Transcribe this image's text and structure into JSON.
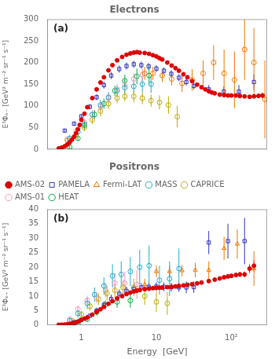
{
  "chart_data": [
    {
      "type": "scatter",
      "title": "Electrons",
      "annotations": [
        "(a)"
      ],
      "ylabel": "E³Φₑ₋ [GeV² m⁻² sr⁻¹ s⁻¹]",
      "log": "x",
      "grid": false,
      "tick_labels": "y",
      "xlim": [
        0.35,
        300
      ],
      "xticks": [
        1,
        10,
        {
          "value": 100,
          "label": "10²"
        }
      ],
      "ylim": [
        0,
        300
      ],
      "yticks": [
        0,
        50,
        100,
        150,
        200,
        250,
        300
      ],
      "series": [
        {
          "color": "#dd0000",
          "marker": "circle",
          "x": [
            0.5,
            0.55,
            0.6,
            0.65,
            0.7,
            0.75,
            0.8,
            0.85,
            0.9,
            0.95,
            1.0,
            1.1,
            1.2,
            1.4,
            1.6,
            1.8,
            2.0,
            2.3,
            2.6,
            3.0,
            3.5,
            4.0,
            4.5,
            5.0,
            5.5,
            6.0,
            7.0,
            8.0,
            9.0,
            10.0,
            11.0,
            12.0,
            14.0,
            16.0,
            18.0,
            20.0,
            23.0,
            26.0,
            30.0,
            35.0,
            40.0,
            45.0,
            50.0,
            55.0,
            60.0,
            70.0,
            80.0,
            90.0,
            100.0,
            115.0,
            130.0,
            150.0,
            175.0,
            200.0,
            230.0,
            260.0
          ],
          "values": [
            2,
            4,
            7,
            11,
            16,
            22,
            29,
            37,
            46,
            56,
            68,
            82,
            97,
            118,
            138,
            154,
            166,
            182,
            194,
            205,
            213,
            218,
            221,
            223,
            224,
            223,
            222,
            220,
            217,
            214,
            210,
            207,
            200,
            193,
            187,
            181,
            173,
            166,
            157,
            149,
            143,
            138,
            134,
            131,
            129,
            126,
            125,
            124,
            124,
            124,
            123,
            122,
            121,
            122,
            123,
            124
          ],
          "errors": [
            0.5,
            0.8,
            1,
            1.2,
            1.5,
            2,
            2,
            2.5,
            3,
            3,
            3,
            3,
            3,
            3,
            3,
            3,
            3,
            3,
            3,
            3,
            3,
            3,
            3,
            3,
            3,
            3,
            3,
            3,
            3,
            3,
            3,
            3,
            3,
            3,
            3,
            3,
            3,
            3,
            3,
            3,
            3,
            3,
            3,
            3,
            3,
            3,
            3,
            3,
            3,
            3,
            3,
            3,
            4,
            4,
            5,
            6
          ]
        },
        {
          "color": "#3333bb",
          "marker": "open_square",
          "x": [
            0.6,
            0.8,
            1.0,
            1.3,
            1.6,
            2.0,
            2.5,
            3.2,
            4.0,
            5.0,
            6.3,
            7.9,
            10.0,
            12.6,
            15.8,
            20.0,
            25.1,
            31.6,
            50.0,
            79.4,
            126.0,
            200.0
          ],
          "values": [
            43,
            59,
            76,
            98,
            120,
            148,
            170,
            185,
            192,
            196,
            194,
            191,
            186,
            181,
            174,
            165,
            155,
            146,
            138,
            133,
            133,
            155
          ],
          "errors": [
            4,
            5,
            5,
            6,
            7,
            8,
            8,
            8,
            8,
            8,
            8,
            8,
            8,
            8,
            8,
            8,
            8,
            8,
            10,
            12,
            15,
            18
          ]
        },
        {
          "color": "#ee7700",
          "marker": "open_circle",
          "x": [
            7.0,
            9.0,
            12.0,
            16.0,
            22.0,
            30.0,
            42.0,
            58.0,
            80.0,
            110.0,
            150.0,
            200.0,
            280.0
          ],
          "values": [
            175,
            175,
            170,
            162,
            152,
            160,
            175,
            200,
            175,
            160,
            230,
            200,
            115
          ],
          "errors": [
            15,
            15,
            15,
            15,
            20,
            25,
            30,
            40,
            55,
            65,
            70,
            80,
            90
          ]
        },
        {
          "color": "#22aacc",
          "marker": "open_circle",
          "x": [
            0.7,
            0.9,
            1.1,
            1.4,
            1.8,
            2.3,
            3.0,
            3.8,
            5.0,
            6.5,
            8.5
          ],
          "values": [
            25,
            40,
            58,
            80,
            102,
            120,
            135,
            142,
            145,
            150,
            150
          ],
          "errors": [
            8,
            8,
            8,
            10,
            12,
            12,
            12,
            14,
            15,
            18,
            20
          ]
        },
        {
          "color": "#bbaa00",
          "marker": "open_circle",
          "x": [
            0.65,
            0.85,
            1.1,
            1.4,
            1.8,
            2.3,
            3.0,
            3.8,
            5.0,
            6.5,
            8.5,
            11.0,
            14.5,
            19.0
          ],
          "values": [
            20,
            32,
            50,
            68,
            88,
            105,
            118,
            122,
            122,
            118,
            112,
            108,
            102,
            75
          ],
          "errors": [
            7,
            7,
            8,
            10,
            12,
            12,
            12,
            12,
            14,
            14,
            14,
            16,
            20,
            25
          ]
        },
        {
          "color": "#ee99bb",
          "marker": "open_circle",
          "x": [
            0.65,
            0.85,
            1.1,
            1.4,
            1.8,
            2.3,
            3.0,
            3.8,
            5.0,
            6.5
          ],
          "values": [
            23,
            42,
            62,
            80,
            98,
            118,
            138,
            148,
            162,
            172
          ],
          "errors": [
            7,
            7,
            8,
            10,
            10,
            12,
            12,
            12,
            14,
            14
          ]
        },
        {
          "color": "#00aa44",
          "marker": "open_circle",
          "x": [
            0.7,
            0.9,
            1.1,
            1.5,
            2.0,
            2.8,
            3.8,
            5.5,
            8.0
          ],
          "values": [
            5,
            25,
            55,
            80,
            105,
            135,
            158,
            168,
            170
          ],
          "errors": [
            4,
            6,
            8,
            10,
            12,
            12,
            14,
            18,
            22
          ]
        }
      ]
    },
    {
      "type": "scatter",
      "title": "Positrons",
      "annotations": [
        "(b)"
      ],
      "xlabel": "Energy  [GeV]",
      "ylabel": "E³Φₑ₊ [GeV² m⁻² sr⁻¹ s⁻¹]",
      "log": "x",
      "grid": false,
      "legend": "upper left",
      "xlim": [
        0.35,
        300
      ],
      "xticks": [
        1,
        10,
        {
          "value": 100,
          "label": "10²"
        }
      ],
      "ylim": [
        0,
        40
      ],
      "yticks": [
        0,
        5,
        10,
        15,
        20,
        25,
        30,
        35,
        40
      ],
      "series": [
        {
          "name": "AMS-02",
          "color": "#dd0000",
          "marker": "circle",
          "x": [
            0.5,
            0.55,
            0.6,
            0.65,
            0.7,
            0.75,
            0.8,
            0.85,
            0.9,
            0.95,
            1.0,
            1.1,
            1.2,
            1.4,
            1.6,
            1.8,
            2.0,
            2.3,
            2.6,
            3.0,
            3.5,
            4.0,
            4.5,
            5.0,
            5.5,
            6.0,
            7.0,
            8.0,
            9.0,
            10.0,
            11.0,
            12.0,
            14.0,
            16.0,
            18.0,
            20.0,
            23.0,
            26.0,
            30.0,
            35.0,
            40.0,
            50.0,
            60.0,
            70.0,
            80.0,
            90.0,
            100.0,
            115.0,
            130.0,
            150.0,
            175.0,
            200.0
          ],
          "values": [
            0.08,
            0.12,
            0.18,
            0.26,
            0.37,
            0.52,
            0.7,
            0.92,
            1.18,
            1.48,
            1.82,
            2.22,
            2.66,
            3.6,
            4.55,
            5.45,
            6.3,
            7.35,
            8.25,
            9.2,
            10.0,
            10.7,
            11.2,
            11.6,
            11.9,
            12.1,
            12.4,
            12.6,
            12.75,
            12.85,
            12.9,
            12.95,
            13.1,
            13.2,
            13.35,
            13.5,
            13.7,
            13.9,
            14.1,
            14.4,
            14.7,
            15.2,
            15.7,
            16.1,
            16.5,
            16.8,
            17.0,
            17.3,
            17.5,
            17.5,
            19.5,
            20.5
          ],
          "errors": [
            0.03,
            0.04,
            0.05,
            0.07,
            0.08,
            0.1,
            0.1,
            0.12,
            0.15,
            0.18,
            0.2,
            0.2,
            0.2,
            0.25,
            0.3,
            0.3,
            0.3,
            0.3,
            0.3,
            0.3,
            0.3,
            0.3,
            0.3,
            0.3,
            0.3,
            0.3,
            0.3,
            0.3,
            0.3,
            0.3,
            0.3,
            0.3,
            0.3,
            0.3,
            0.3,
            0.3,
            0.3,
            0.3,
            0.3,
            0.35,
            0.4,
            0.4,
            0.5,
            0.5,
            0.6,
            0.6,
            0.7,
            0.8,
            0.9,
            1.0,
            1.5,
            2.0
          ]
        },
        {
          "name": "PAMELA",
          "color": "#3333bb",
          "marker": "open_square",
          "x": [
            0.8,
            1.0,
            1.3,
            1.6,
            2.0,
            2.5,
            3.2,
            4.0,
            5.0,
            6.3,
            7.9,
            10.0,
            12.6,
            15.8,
            20.0,
            25.1,
            31.6,
            50.0,
            90.0,
            150.0
          ],
          "values": [
            1.0,
            1.8,
            3.2,
            5.0,
            7.0,
            9.0,
            10.8,
            11.8,
            12.5,
            13.0,
            13.2,
            13.3,
            13.2,
            13.1,
            13.0,
            13.0,
            13.1,
            28.5,
            29.0,
            29.0
          ],
          "errors": [
            0.3,
            0.4,
            0.7,
            1.0,
            1.2,
            1.5,
            1.5,
            1.5,
            1.5,
            1.5,
            1.5,
            1.5,
            1.5,
            1.5,
            1.5,
            2.0,
            2.0,
            4.0,
            6.0,
            8.0
          ]
        },
        {
          "name": "Fermi-LAT",
          "color": "#ee7700",
          "marker": "open_triangle",
          "x": [
            7.0,
            10.0,
            15.0,
            22.0,
            33.0,
            50.0,
            80.0,
            120.0,
            200.0
          ],
          "values": [
            14.0,
            18.5,
            18.5,
            18.8,
            19.0,
            19.0,
            26.5,
            28.0,
            19.5
          ],
          "errors": [
            2.0,
            2.0,
            2.0,
            2.0,
            2.5,
            3.0,
            4.0,
            5.0,
            6.0
          ]
        },
        {
          "name": "MASS",
          "color": "#22aacc",
          "marker": "open_circle",
          "x": [
            0.7,
            0.9,
            1.2,
            1.5,
            2.0,
            2.6,
            3.4,
            4.5,
            6.0,
            8.0,
            11.0,
            15.0,
            20.0
          ],
          "values": [
            1.5,
            4.0,
            7.5,
            10.5,
            13.5,
            17.0,
            17.5,
            18.5,
            20.0,
            20.5,
            15.5,
            16.0,
            19.5
          ],
          "errors": [
            1.0,
            1.5,
            2.0,
            2.5,
            3.0,
            4.0,
            4.5,
            5.0,
            6.0,
            7.0,
            5.0,
            6.0,
            7.0
          ]
        },
        {
          "name": "CAPRICE",
          "color": "#bbaa00",
          "marker": "open_circle",
          "x": [
            0.75,
            1.0,
            1.3,
            1.7,
            2.2,
            2.8,
            3.6,
            5.0,
            7.0,
            10.0,
            14.0
          ],
          "values": [
            1.5,
            3.8,
            6.5,
            9.0,
            11.0,
            12.0,
            13.0,
            13.0,
            10.0,
            8.0,
            7.5
          ],
          "errors": [
            0.8,
            1.0,
            1.5,
            2.0,
            2.5,
            2.5,
            2.5,
            3.0,
            3.0,
            3.5,
            4.0
          ]
        },
        {
          "name": "AMS-01",
          "color": "#ee99bb",
          "marker": "open_circle",
          "x": [
            0.7,
            0.9,
            1.2,
            1.6,
            2.1,
            2.8,
            3.8,
            5.5
          ],
          "values": [
            2.0,
            5.5,
            8.5,
            9.5,
            12.0,
            14.5,
            14.5,
            14.0
          ],
          "errors": [
            0.8,
            1.2,
            1.5,
            2.0,
            2.5,
            3.5,
            4.0,
            5.0
          ]
        },
        {
          "name": "HEAT",
          "color": "#00aa44",
          "marker": "open_circle",
          "x": [
            0.7,
            0.9,
            1.2,
            1.6,
            2.1,
            3.0,
            4.5
          ],
          "values": [
            0.1,
            0.5,
            2.0,
            4.5,
            7.0,
            8.0,
            8.5
          ],
          "errors": [
            0.05,
            0.3,
            0.8,
            1.2,
            1.5,
            2.0,
            2.5
          ]
        }
      ]
    }
  ]
}
